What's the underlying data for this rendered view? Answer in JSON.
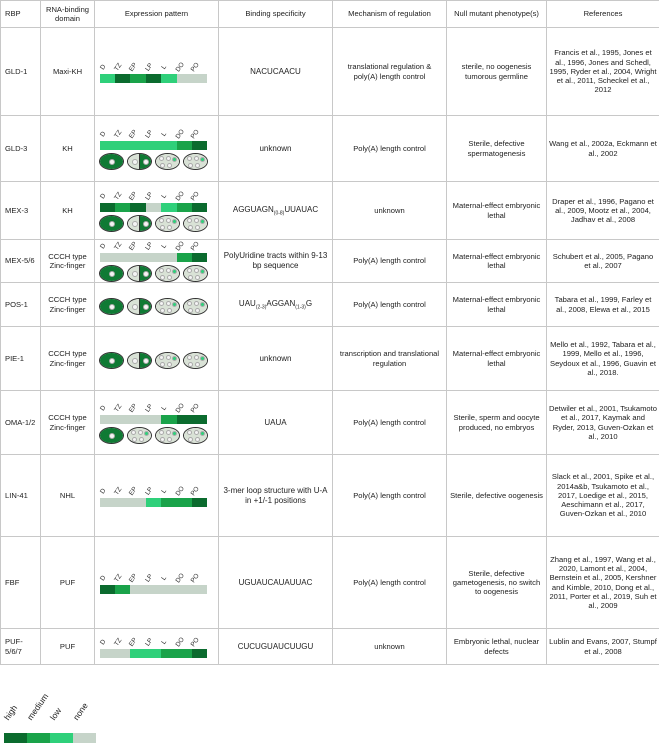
{
  "colors": {
    "high": "#0b6b2e",
    "medium": "#1aa34a",
    "low": "#2fd07a",
    "none": "#c6d4c9",
    "embryo_dark": "#0f7a34",
    "embryo_light": "#d9e2d6"
  },
  "stage_labels": [
    "D",
    "TZ",
    "EP",
    "LP",
    "L",
    "DO",
    "PO"
  ],
  "headers": {
    "rbp": "RBP",
    "domain": "RNA-binding domain",
    "expression": "Expression pattern",
    "binding": "Binding specificity",
    "mechanism": "Mechanism of regulation",
    "phenotype": "Null mutant phenotype(s)",
    "references": "References"
  },
  "rows": [
    {
      "rbp": "GLD-1",
      "domain": "Maxi-KH",
      "bar": [
        "low",
        "high",
        "medium",
        "high",
        "low",
        "none",
        "none"
      ],
      "embryos": null,
      "binding": "NACUCAACU",
      "mechanism": "translational regulation & poly(A) length control",
      "phenotype": "sterile, no oogenesis tumorous germline",
      "references": "Francis et al., 1995, Jones et al., 1996, Jones and Schedl, 1995, Ryder et al., 2004, Wright et al., 2011, Scheckel et al., 2012"
    },
    {
      "rbp": "GLD-3",
      "domain": "KH",
      "bar": [
        "low",
        "low",
        "low",
        "low",
        "low",
        "medium",
        "high"
      ],
      "embryos": [
        "full",
        "half",
        "light",
        "light"
      ],
      "binding": "unknown",
      "mechanism": "Poly(A) length control",
      "phenotype": "Sterile, defective spermatogenesis",
      "references": "Wang et al., 2002a, Eckmann et al., 2002"
    },
    {
      "rbp": "MEX-3",
      "domain": "KH",
      "bar": [
        "high",
        "medium",
        "high",
        "none",
        "low",
        "medium",
        "high"
      ],
      "embryos": [
        "full",
        "half",
        "light",
        "light"
      ],
      "binding": "AGGUAGN(0-8)UUAUAC",
      "mechanism": "unknown",
      "phenotype": "Maternal-effect embryonic lethal",
      "references": "Draper et al., 1996, Pagano et al., 2009, Mootz et al., 2004, Jadhav et al., 2008"
    },
    {
      "rbp": "MEX-5/6",
      "domain": "CCCH type Zinc-finger",
      "bar": [
        "none",
        "none",
        "none",
        "none",
        "none",
        "medium",
        "high"
      ],
      "embryos": [
        "full",
        "half",
        "light",
        "light"
      ],
      "binding": "PolyUridine tracts within 9-13 bp sequence",
      "mechanism": "Poly(A) length control",
      "phenotype": "Maternal-effect embryonic lethal",
      "references": "Schubert et al., 2005, Pagano et al., 2007"
    },
    {
      "rbp": "POS-1",
      "domain": "CCCH type Zinc-finger",
      "bar": [],
      "embryos": [
        "full",
        "halfr",
        "light",
        "light"
      ],
      "binding": "UAU(2-3)AGGAN(1-3)G",
      "mechanism": "Poly(A) length control",
      "phenotype": "Maternal-effect embryonic lethal",
      "references": "Tabara et al., 1999, Farley et al., 2008, Elewa et al., 2015"
    },
    {
      "rbp": "PIE-1",
      "domain": "CCCH type Zinc-finger",
      "bar": [],
      "embryos": [
        "full",
        "halfr",
        "light",
        "light"
      ],
      "binding": "unknown",
      "mechanism": "transcription and translational regulation",
      "phenotype": "Maternal-effect embryonic lethal",
      "references": "Mello et al., 1992, Tabara et al., 1999, Mello et al., 1996, Seydoux et al., 1996, Guavin et al., 2018."
    },
    {
      "rbp": "OMA-1/2",
      "domain": "CCCH type Zinc-finger",
      "bar": [
        "none",
        "none",
        "none",
        "none",
        "medium",
        "high",
        "high"
      ],
      "embryos": [
        "full",
        "light",
        "light",
        "light"
      ],
      "binding": "UAUA",
      "mechanism": "Poly(A) length control",
      "phenotype": "Sterile, sperm and oocyte produced, no embryos",
      "references": "Detwiler et al., 2001, Tsukamoto et al., 2017, Kaymak and Ryder, 2013, Guven-Ozkan et al., 2010"
    },
    {
      "rbp": "LIN-41",
      "domain": "NHL",
      "bar": [
        "none",
        "none",
        "none",
        "low",
        "medium",
        "medium",
        "high"
      ],
      "embryos": null,
      "binding": "3-mer loop structure with U-A in +1/-1 positions",
      "mechanism": "Poly(A) length control",
      "phenotype": "Sterile, defective oogenesis",
      "references": "Slack et al., 2001, Spike et al., 2014a&b, Tsukamoto et al., 2017, Loedige et al., 2015, Aeschimann et al., 2017, Guven-Ozkan et al., 2010"
    },
    {
      "rbp": "FBF",
      "domain": "PUF",
      "bar": [
        "high",
        "medium",
        "none",
        "none",
        "none",
        "none",
        "none"
      ],
      "embryos": null,
      "binding": "UGUAUCAUAUUAC",
      "mechanism": "Poly(A) length control",
      "phenotype": "Sterile, defective gametogenesis, no switch to oogenesis",
      "references": "Zhang et al., 1997, Wang et al., 2020, Lamont et al., 2004, Bernstein et al., 2005, Kershner and Kimble, 2010, Dong et al., 2011, Porter et al., 2019, Suh et al., 2009"
    },
    {
      "rbp": "PUF-5/6/7",
      "domain": "PUF",
      "bar": [
        "none",
        "none",
        "low",
        "low",
        "medium",
        "medium",
        "high"
      ],
      "embryos": null,
      "binding": "CUCUGUAUCUUGU",
      "mechanism": "unknown",
      "phenotype": "Embryonic lethal, nuclear defects",
      "references": "Lublin and Evans, 2007, Stumpf et al., 2008"
    }
  ],
  "legend": [
    "high",
    "medium",
    "low",
    "none"
  ]
}
